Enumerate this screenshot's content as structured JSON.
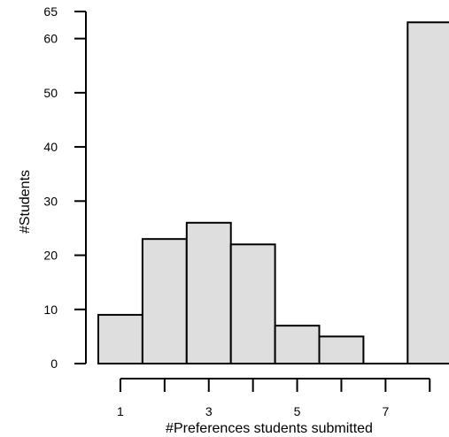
{
  "chart_data": {
    "type": "bar",
    "categories": [
      "1",
      "2",
      "3",
      "4",
      "5",
      "6",
      "7",
      "8"
    ],
    "values": [
      9,
      23,
      26,
      22,
      7,
      5,
      0,
      63
    ],
    "xlabel": "#Preferences students submitted",
    "ylabel": "#Students",
    "ylim": [
      0,
      65
    ],
    "yticks": [
      0,
      10,
      20,
      30,
      40,
      50,
      60,
      65
    ],
    "xticks": [
      1,
      2,
      3,
      4,
      5,
      6,
      7,
      8
    ],
    "xtick_labels": [
      "1",
      "",
      "3",
      "",
      "5",
      "",
      "7",
      ""
    ],
    "grid": false,
    "colors": {
      "bar_fill": "#dedede",
      "bar_stroke": "#000000"
    }
  }
}
